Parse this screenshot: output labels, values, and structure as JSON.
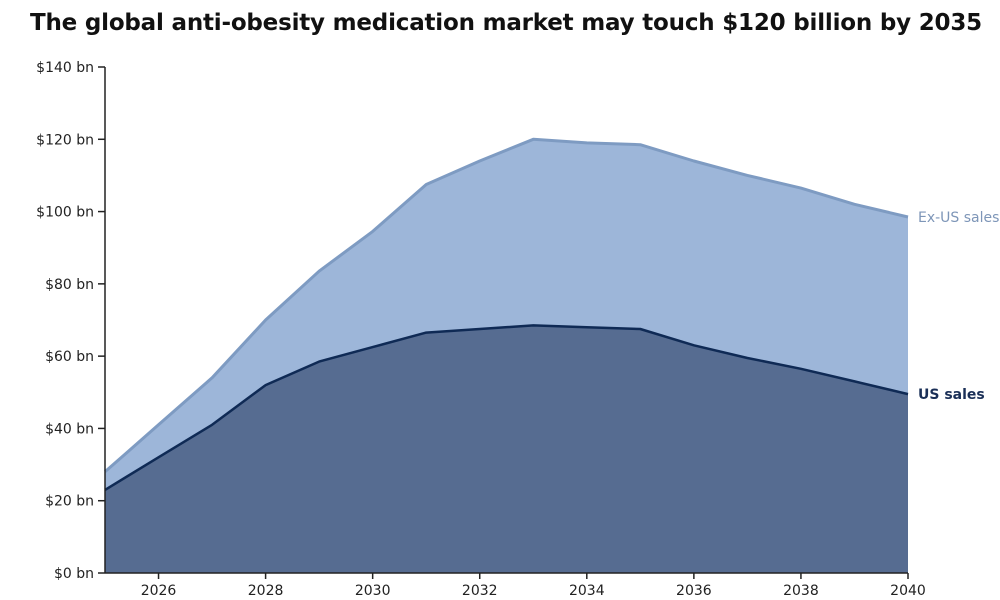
{
  "title": "The global anti-obesity medication market may touch $120 billion by 2035",
  "colors": {
    "ex_us_fill": "#9db6d9",
    "ex_us_line": "#7e9bc2",
    "ex_us_label": "#7e96b8",
    "us_fill": "#566c91",
    "us_line": "#0f2a55",
    "us_label": "#1a2f57",
    "axis": "#222222"
  },
  "chart_data": {
    "type": "area",
    "stacked": true,
    "title": "The global anti-obesity medication market may touch $120 billion by 2035",
    "xlabel": "",
    "ylabel": "",
    "x": [
      2025,
      2026,
      2027,
      2028,
      2029,
      2030,
      2031,
      2032,
      2033,
      2034,
      2035,
      2036,
      2037,
      2038,
      2039,
      2040
    ],
    "xlim": [
      2025,
      2040
    ],
    "x_ticks": [
      2026,
      2028,
      2030,
      2032,
      2034,
      2036,
      2038,
      2040
    ],
    "ylim": [
      0,
      140
    ],
    "y_ticks": [
      0,
      20,
      40,
      60,
      80,
      100,
      120,
      140
    ],
    "y_tick_labels": [
      "$0 bn",
      "$20 bn",
      "$40 bn",
      "$60 bn",
      "$80 bn",
      "$100 bn",
      "$120 bn",
      "$140 bn"
    ],
    "series": [
      {
        "name": "US sales",
        "values": [
          23,
          32,
          41,
          52,
          58.5,
          62.5,
          66.5,
          67.5,
          68.5,
          68,
          67.5,
          63,
          59.5,
          56.5,
          53,
          49.5
        ]
      },
      {
        "name": "Ex-US sales",
        "values": [
          5,
          9,
          13,
          18,
          25,
          32,
          41,
          46.5,
          51.5,
          51,
          51,
          51,
          50.5,
          50,
          49,
          49
        ]
      }
    ],
    "totals": [
      28,
      41,
      54,
      70,
      83.5,
      94.5,
      107.5,
      114,
      120,
      119,
      118.5,
      114,
      110,
      106.5,
      102,
      98.5
    ],
    "grid": false,
    "legend": "inline labels at right end of series"
  }
}
